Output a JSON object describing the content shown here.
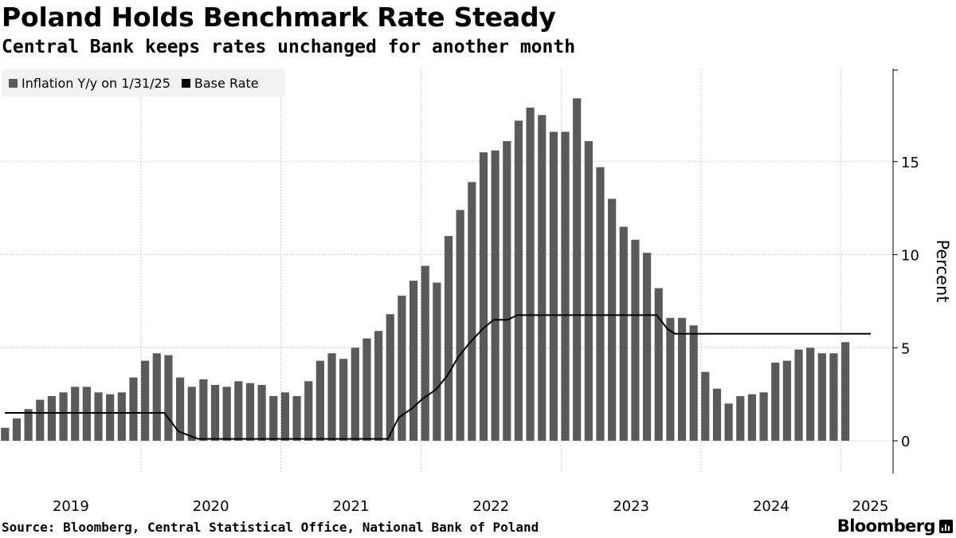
{
  "header": {
    "title": "Poland Holds Benchmark Rate Steady",
    "subtitle": "Central Bank keeps rates unchanged for another month"
  },
  "legend": {
    "items": [
      {
        "label": "Inflation Y/y on 1/31/25",
        "color": "#5a5a5a"
      },
      {
        "label": "Base Rate",
        "color": "#000000"
      }
    ]
  },
  "footer": {
    "source": "Source: Bloomberg, Central Statistical Office, National Bank of Poland",
    "brand": "Bloomberg"
  },
  "chart_data": {
    "type": "bar",
    "title": "Poland Holds Benchmark Rate Steady",
    "xlabel": "",
    "ylabel": "Percent",
    "ylim": [
      -1.8,
      19.5
    ],
    "yticks": [
      0,
      5,
      10,
      15
    ],
    "ytick_labels": [
      "0",
      "5",
      "10",
      "15"
    ],
    "x_start": "2019-01",
    "x_end": "2025-04",
    "x_tick_labels": [
      "2019",
      "2020",
      "2021",
      "2022",
      "2023",
      "2024",
      "2025"
    ],
    "bar_color": "#5a5a5a",
    "line_color": "#000000",
    "series": [
      {
        "name": "Inflation Y/y on 1/31/25",
        "type": "bar",
        "start": "2019-01",
        "values": [
          0.7,
          1.2,
          1.7,
          2.2,
          2.4,
          2.6,
          2.9,
          2.9,
          2.6,
          2.5,
          2.6,
          3.4,
          4.3,
          4.7,
          4.6,
          3.4,
          2.9,
          3.3,
          3.0,
          2.9,
          3.2,
          3.1,
          3.0,
          2.4,
          2.6,
          2.4,
          3.2,
          4.3,
          4.7,
          4.4,
          5.0,
          5.5,
          5.9,
          6.8,
          7.8,
          8.6,
          9.4,
          8.5,
          11.0,
          12.4,
          13.9,
          15.5,
          15.6,
          16.1,
          17.2,
          17.9,
          17.5,
          16.6,
          16.6,
          18.4,
          16.1,
          14.7,
          13.0,
          11.5,
          10.8,
          10.1,
          8.2,
          6.6,
          6.6,
          6.2,
          3.7,
          2.8,
          2.0,
          2.4,
          2.5,
          2.6,
          4.2,
          4.3,
          4.9,
          5.0,
          4.7,
          4.7,
          5.3
        ]
      },
      {
        "name": "Base Rate",
        "type": "line",
        "points": [
          {
            "x": "2019-01-01",
            "y": 1.5
          },
          {
            "x": "2020-03-01",
            "y": 1.5
          },
          {
            "x": "2020-04-08",
            "y": 0.5
          },
          {
            "x": "2020-05-29",
            "y": 0.1
          },
          {
            "x": "2021-10-06",
            "y": 0.1
          },
          {
            "x": "2021-11-04",
            "y": 1.25
          },
          {
            "x": "2021-12-09",
            "y": 1.75
          },
          {
            "x": "2022-01-05",
            "y": 2.25
          },
          {
            "x": "2022-02-09",
            "y": 2.75
          },
          {
            "x": "2022-03-09",
            "y": 3.5
          },
          {
            "x": "2022-04-07",
            "y": 4.5
          },
          {
            "x": "2022-05-06",
            "y": 5.25
          },
          {
            "x": "2022-06-09",
            "y": 6.0
          },
          {
            "x": "2022-07-08",
            "y": 6.5
          },
          {
            "x": "2022-08-15",
            "y": 6.5
          },
          {
            "x": "2022-09-08",
            "y": 6.75
          },
          {
            "x": "2023-09-07",
            "y": 6.75
          },
          {
            "x": "2023-10-05",
            "y": 6.0
          },
          {
            "x": "2023-10-25",
            "y": 5.75
          },
          {
            "x": "2025-04-15",
            "y": 5.75
          }
        ]
      }
    ]
  }
}
